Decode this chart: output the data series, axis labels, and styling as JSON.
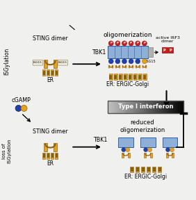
{
  "bg_color": "#f2f2f2",
  "isgylation_label": "ISGylation",
  "loss_isgylation_label": "loss of\nISGylation",
  "cgamp_label": "cGAMP",
  "sting_dimer_label": "STING dimer",
  "er_label": "ER",
  "oligomerization_label": "oligomerization",
  "reduced_oligo_label": "reduced\noligomerization",
  "tbk1_label": "TBK1",
  "er_ergic_label": "ER: ERGIC-Golgi",
  "active_irf3_label": "active IRF3\ndimer",
  "type_i_label": "Type I interferon",
  "isg15_label": "ISG15",
  "colors": {
    "orange": "#E8A020",
    "dark_orange": "#8B5E0A",
    "blue_light": "#8EB0D8",
    "blue_dark": "#3060A0",
    "blue_dot": "#2040B0",
    "red": "#CC2020",
    "gray_mid": "#909090",
    "black": "#111111",
    "white": "#FFFFFF",
    "bg": "#f0f0ee"
  }
}
